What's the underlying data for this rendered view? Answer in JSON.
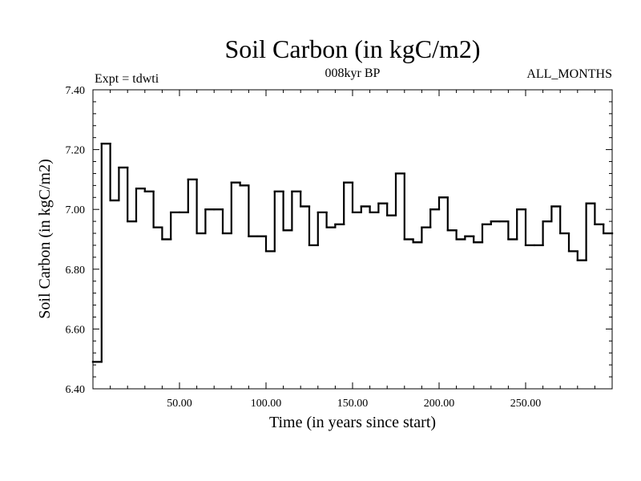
{
  "chart_data": {
    "type": "line",
    "style": "step",
    "title": "Soil Carbon (in kgC/m2)",
    "subtitle": "008kyr BP",
    "left_note": "Expt = tdwti",
    "right_note": "ALL_MONTHS",
    "xlabel": "Time (in years since start)",
    "ylabel": "Soil Carbon (in kgC/m2)",
    "xlim": [
      0,
      300
    ],
    "ylim": [
      6.4,
      7.4
    ],
    "x_ticks": [
      50,
      100,
      150,
      200,
      250
    ],
    "x_tick_labels": [
      "50.00",
      "100.00",
      "150.00",
      "200.00",
      "250.00"
    ],
    "y_ticks": [
      6.4,
      6.6,
      6.8,
      7.0,
      7.2,
      7.4
    ],
    "y_tick_labels": [
      "6.40",
      "6.60",
      "6.80",
      "7.00",
      "7.20",
      "7.40"
    ],
    "series": [
      {
        "name": "Soil Carbon",
        "color": "#000000",
        "x_step_starts": [
          0,
          5,
          10,
          15,
          20,
          25,
          30,
          35,
          40,
          45,
          50,
          55,
          60,
          65,
          70,
          75,
          80,
          85,
          90,
          95,
          100,
          105,
          110,
          115,
          120,
          125,
          130,
          135,
          140,
          145,
          150,
          155,
          160,
          165,
          170,
          175,
          180,
          185,
          190,
          195,
          200,
          205,
          210,
          215,
          220,
          225,
          230,
          235,
          240,
          245,
          250,
          255,
          260,
          265,
          270,
          275,
          280,
          285,
          290,
          295
        ],
        "x_end": 300,
        "values": [
          6.49,
          7.22,
          7.03,
          7.14,
          6.96,
          7.07,
          7.06,
          6.94,
          6.9,
          6.99,
          6.99,
          7.1,
          6.92,
          7.0,
          7.0,
          6.92,
          7.09,
          7.08,
          6.91,
          6.91,
          6.86,
          7.06,
          6.93,
          7.06,
          7.01,
          6.88,
          6.99,
          6.94,
          6.95,
          7.09,
          6.99,
          7.01,
          6.99,
          7.02,
          6.98,
          7.12,
          6.9,
          6.89,
          6.94,
          7.0,
          7.04,
          6.93,
          6.9,
          6.91,
          6.89,
          6.95,
          6.96,
          6.96,
          6.9,
          7.0,
          6.88,
          6.88,
          6.96,
          7.01,
          6.92,
          6.86,
          6.83,
          7.02,
          6.95,
          6.92
        ]
      }
    ]
  }
}
